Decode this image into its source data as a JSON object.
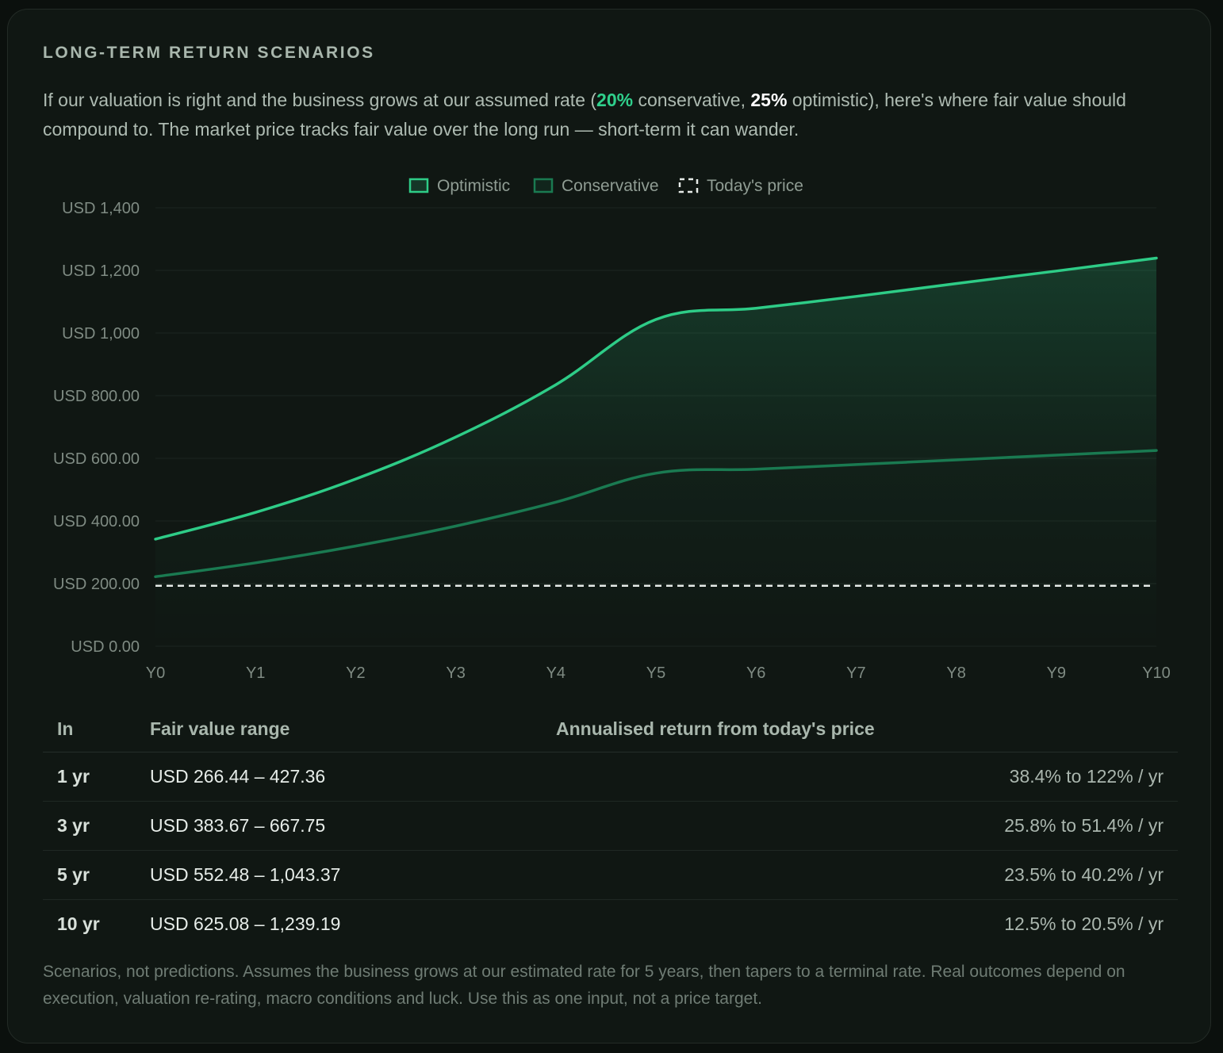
{
  "section_title": "LONG-TERM RETURN SCENARIOS",
  "intro": {
    "part1": "If our valuation is right and the business grows at our assumed rate (",
    "conservative_rate": "20%",
    "part2": " conservative, ",
    "optimistic_rate": "25%",
    "part3": " optimistic), here's where fair value should compound to. The market price tracks fair value over the long run — short-term it can wander."
  },
  "colors": {
    "optimistic": "#2ecc87",
    "conservative": "#1a7a51",
    "todays_price": "#e6ebe8",
    "grid": "#1d2621"
  },
  "chart_data": {
    "type": "line",
    "categories": [
      "Y0",
      "Y1",
      "Y2",
      "Y3",
      "Y4",
      "Y5",
      "Y6",
      "Y7",
      "Y8",
      "Y9",
      "Y10"
    ],
    "series": [
      {
        "name": "Optimistic",
        "values": [
          342,
          427.36,
          534,
          667.75,
          835,
          1043.37,
          1079,
          1117,
          1158,
          1198,
          1239.19
        ],
        "fill": true
      },
      {
        "name": "Conservative",
        "values": [
          222,
          266.44,
          320,
          383.67,
          460,
          552.48,
          565,
          580,
          595,
          610,
          625.08
        ]
      },
      {
        "name": "Today's price",
        "values": [
          193,
          193,
          193,
          193,
          193,
          193,
          193,
          193,
          193,
          193,
          193
        ],
        "dashed": true
      }
    ],
    "yticks": [
      "USD 0.00",
      "USD 200.00",
      "USD 400.00",
      "USD 600.00",
      "USD 800.00",
      "USD 1,000",
      "USD 1,200",
      "USD 1,400"
    ],
    "ylim": [
      0,
      1400
    ],
    "legend_position": "top",
    "grid": true
  },
  "table": {
    "headers": {
      "period": "In",
      "range": "Fair value range",
      "return": "Annualised return from today's price"
    },
    "rows": [
      {
        "period": "1 yr",
        "range": "USD 266.44 – 427.36",
        "return": "38.4% to 122% / yr"
      },
      {
        "period": "3 yr",
        "range": "USD 383.67 – 667.75",
        "return": "25.8% to 51.4% / yr"
      },
      {
        "period": "5 yr",
        "range": "USD 552.48 – 1,043.37",
        "return": "23.5% to 40.2% / yr"
      },
      {
        "period": "10 yr",
        "range": "USD 625.08 – 1,239.19",
        "return": "12.5% to 20.5% / yr"
      }
    ]
  },
  "footnote": "Scenarios, not predictions. Assumes the business grows at our estimated rate for 5 years, then tapers to a terminal rate. Real outcomes depend on execution, valuation re-rating, macro conditions and luck. Use this as one input, not a price target."
}
